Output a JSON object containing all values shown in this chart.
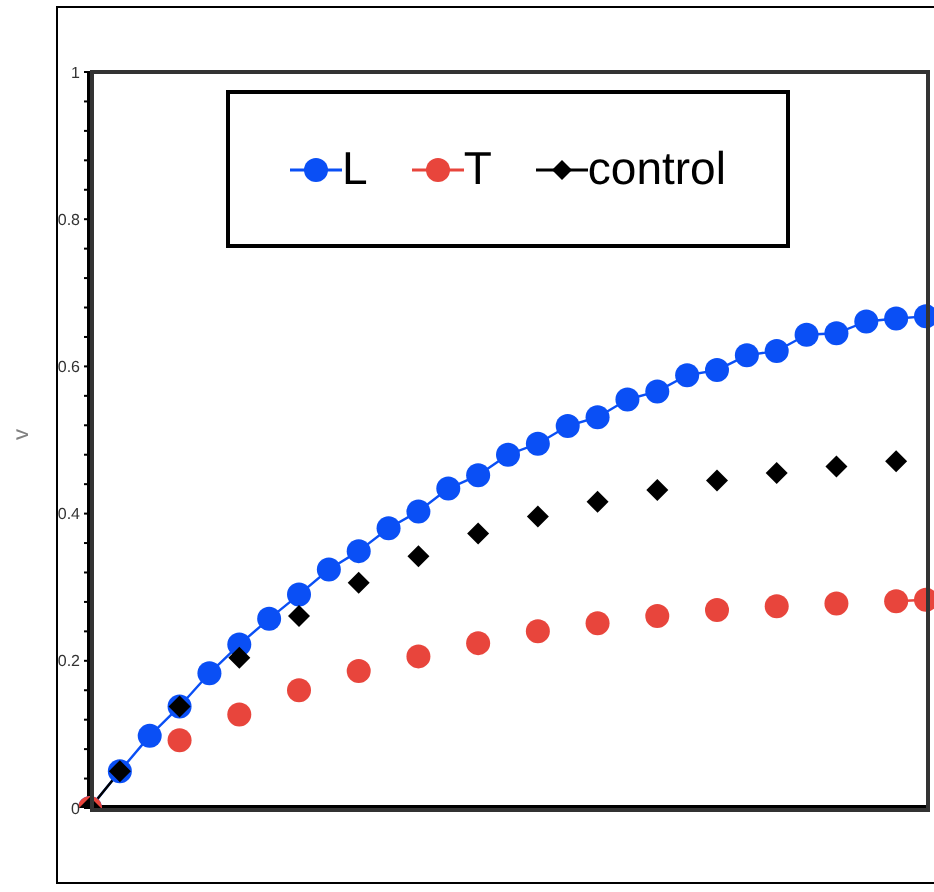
{
  "chart_data": {
    "type": "line",
    "ylabel": "v",
    "categories": [
      null,
      null,
      null,
      null,
      null,
      null,
      null,
      null,
      null,
      null,
      null,
      null,
      null,
      null,
      null,
      null,
      null,
      null,
      null,
      null,
      null,
      null,
      null,
      null,
      null,
      null,
      null,
      null,
      null
    ],
    "series": [
      {
        "name": "L",
        "color": "#0a4ff5",
        "marker": "circle",
        "values": [
          0,
          0.05,
          0.098,
          0.138,
          0.183,
          0.222,
          0.257,
          0.29,
          0.324,
          0.349,
          0.38,
          0.403,
          0.434,
          0.452,
          0.48,
          0.495,
          0.519,
          0.531,
          0.555,
          0.566,
          0.588,
          0.595,
          0.615,
          0.621,
          0.643,
          0.645,
          0.661,
          0.665,
          0.668
        ]
      },
      {
        "name": "T",
        "color": "#e8453c",
        "marker": "circle",
        "values": [
          0,
          null,
          null,
          0.092,
          null,
          0.127,
          null,
          0.16,
          null,
          0.186,
          null,
          0.206,
          null,
          0.224,
          null,
          0.24,
          null,
          0.251,
          null,
          0.261,
          null,
          0.269,
          null,
          0.274,
          null,
          0.278,
          null,
          0.281,
          0.283
        ]
      },
      {
        "name": "control",
        "color": "#000000",
        "marker": "diamond",
        "values": [
          0,
          0.05,
          null,
          0.138,
          null,
          0.204,
          null,
          0.261,
          null,
          0.306,
          null,
          0.342,
          null,
          0.373,
          null,
          0.396,
          null,
          0.416,
          null,
          0.432,
          null,
          0.445,
          null,
          0.455,
          null,
          0.464,
          null,
          0.471,
          null
        ]
      }
    ],
    "ylim": [
      0,
      1
    ],
    "yticks": [
      0,
      {
        "value": 0.04,
        "label": null
      },
      {
        "value": 0.08,
        "label": null
      },
      {
        "value": 0.12,
        "label": null
      },
      {
        "value": 0.16,
        "label": null
      },
      0.2,
      {
        "value": 0.24,
        "label": null
      },
      {
        "value": 0.28,
        "label": null
      },
      {
        "value": 0.32,
        "label": null
      },
      {
        "value": 0.36,
        "label": null
      },
      0.4,
      {
        "value": 0.44,
        "label": null
      },
      {
        "value": 0.48,
        "label": null
      },
      {
        "value": 0.52,
        "label": null
      },
      {
        "value": 0.56,
        "label": null
      },
      0.6,
      {
        "value": 0.64,
        "label": null
      },
      {
        "value": 0.68,
        "label": null
      },
      {
        "value": 0.72,
        "label": null
      },
      {
        "value": 0.76,
        "label": null
      },
      0.8,
      {
        "value": 0.84,
        "label": null
      },
      {
        "value": 0.88,
        "label": null
      },
      {
        "value": 0.92,
        "label": null
      },
      {
        "value": 0.96,
        "label": null
      },
      1
    ],
    "grid": false,
    "legend": "top",
    "tick_labels": "y"
  }
}
